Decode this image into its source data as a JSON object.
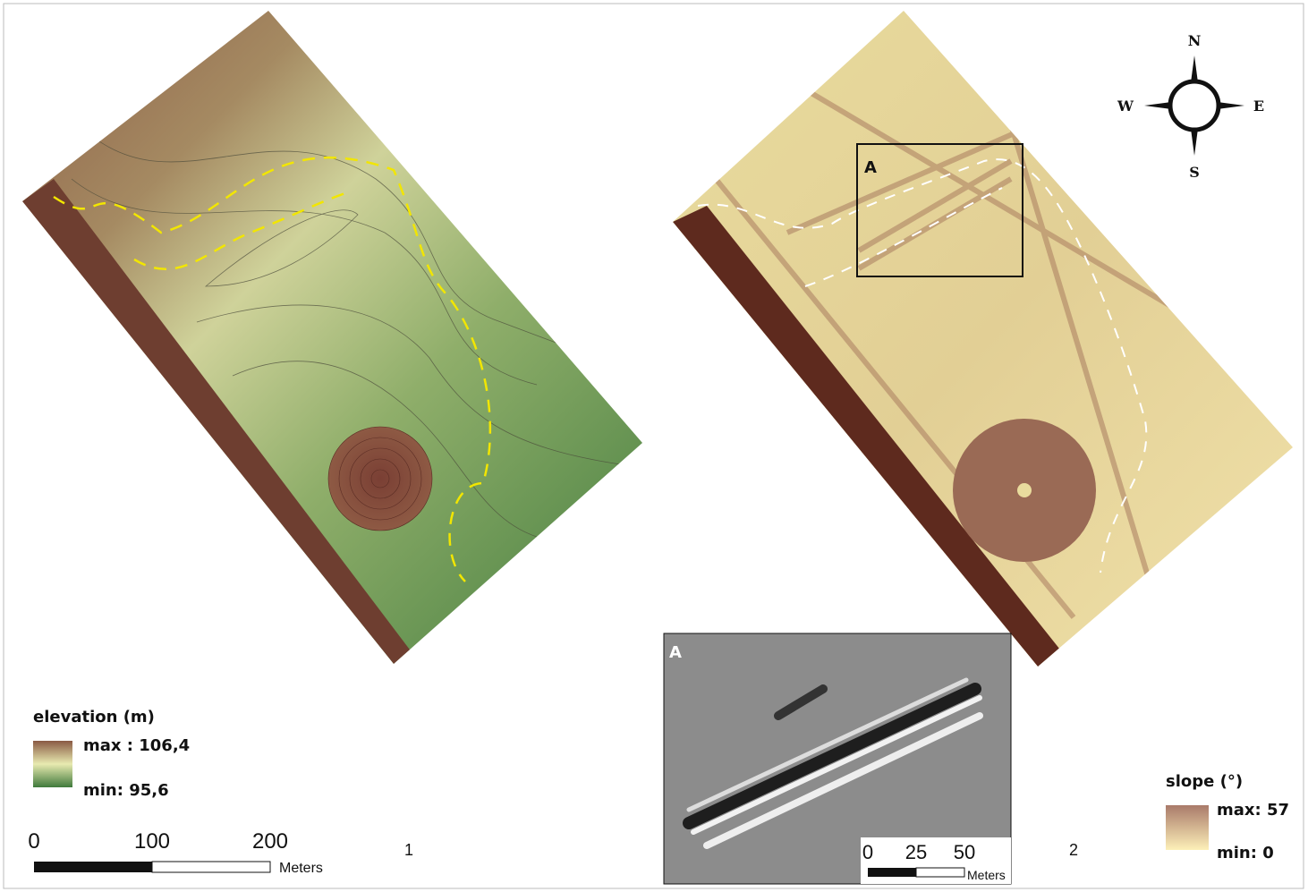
{
  "panel1": {
    "number": "1",
    "legend": {
      "title": "elevation (m)",
      "max": "max : 106,4",
      "min": "min: 95,6"
    },
    "scale_bar": {
      "ticks": [
        0,
        100,
        200
      ],
      "unit": "Meters"
    }
  },
  "panel2": {
    "number": "2",
    "box_label": "A",
    "legend": {
      "title": "slope (°)",
      "max": "max: 57",
      "min": "min: 0"
    }
  },
  "inset": {
    "label": "A",
    "scale_bar": {
      "ticks": [
        0,
        25,
        50
      ],
      "unit": "Meters"
    }
  },
  "compass": {
    "n": "N",
    "s": "S",
    "e": "E",
    "w": "W"
  }
}
